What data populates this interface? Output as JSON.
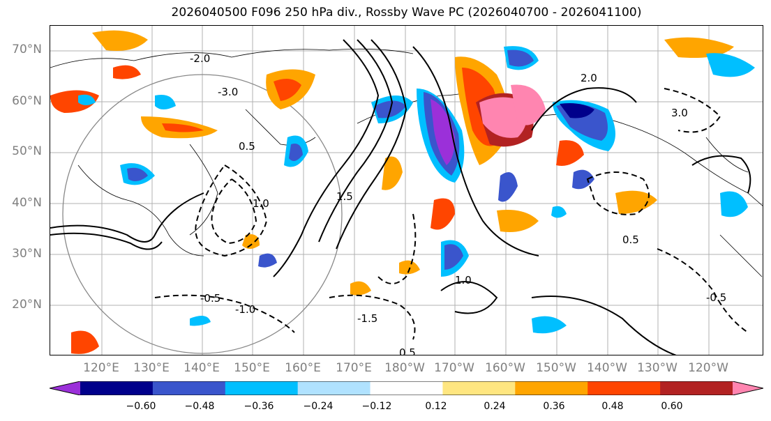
{
  "title": "2026040500 F096 250 hPa div., Rossby Wave PC (2026040700 - 2026041100)",
  "lat_labels": [
    "70°N",
    "60°N",
    "50°N",
    "40°N",
    "30°N",
    "20°N"
  ],
  "lon_labels": [
    "120°E",
    "130°E",
    "140°E",
    "150°E",
    "160°E",
    "170°E",
    "180°W",
    "170°W",
    "160°W",
    "150°W",
    "140°W",
    "130°W",
    "120°W"
  ],
  "contour_labels": [
    "0.5",
    "1.0",
    "1.5",
    "2.0",
    "3.0",
    "-0.5",
    "-1.0",
    "-1.5",
    "-2.0",
    "-3.0",
    "0.5",
    "1.0",
    "0.5",
    "-0.5"
  ],
  "colorbar": {
    "colors": [
      "#9b30d9",
      "#00008b",
      "#3a55cc",
      "#00bfff",
      "#b0e2ff",
      "#ffffff",
      "#ffe680",
      "#ffa500",
      "#ff4500",
      "#b22222",
      "#ff85b0"
    ],
    "tick_labels": [
      "−0.60",
      "−0.48",
      "−0.36",
      "−0.24",
      "−0.12",
      "0.12",
      "0.24",
      "0.36",
      "0.48",
      "0.60"
    ]
  }
}
